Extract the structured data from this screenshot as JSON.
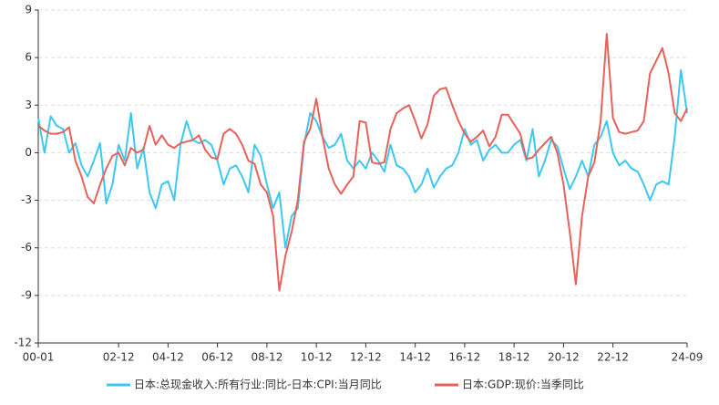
{
  "chart_data": {
    "type": "line",
    "categories": [
      "00-01",
      null,
      null,
      null,
      null,
      null,
      null,
      null,
      null,
      null,
      null,
      null,
      null,
      "02-12",
      null,
      null,
      null,
      null,
      null,
      null,
      null,
      "04-12",
      null,
      null,
      null,
      null,
      null,
      null,
      null,
      "06-12",
      null,
      null,
      null,
      null,
      null,
      null,
      null,
      "08-12",
      null,
      null,
      null,
      null,
      null,
      null,
      null,
      "10-12",
      null,
      null,
      null,
      null,
      null,
      null,
      null,
      "12-12",
      null,
      null,
      null,
      null,
      null,
      null,
      null,
      "14-12",
      null,
      null,
      null,
      null,
      null,
      null,
      null,
      "16-12",
      null,
      null,
      null,
      null,
      null,
      null,
      null,
      "18-12",
      null,
      null,
      null,
      null,
      null,
      null,
      null,
      "20-12",
      null,
      null,
      null,
      null,
      null,
      null,
      null,
      "22-12",
      null,
      null,
      null,
      null,
      null,
      null,
      null,
      null,
      null,
      null,
      null,
      "24-09"
    ],
    "series": [
      {
        "name": "日本:总现金收入:所有行业:同比-日本:CPI:当月同比",
        "color": "#3cc8f0",
        "values": [
          2.2,
          0.0,
          2.3,
          1.7,
          1.5,
          0.0,
          0.6,
          -0.8,
          -1.5,
          -0.5,
          0.6,
          -3.2,
          -2.0,
          0.5,
          -0.5,
          2.5,
          -1.0,
          0.3,
          -2.5,
          -3.5,
          -2.0,
          -1.8,
          -3.0,
          0.5,
          2.0,
          0.8,
          0.6,
          0.8,
          0.5,
          -0.5,
          -2.0,
          -1.0,
          -0.8,
          -1.5,
          -2.5,
          0.5,
          -0.2,
          -2.0,
          -3.5,
          -2.5,
          -6.0,
          -4.0,
          -3.5,
          0.5,
          2.5,
          2.0,
          1.0,
          0.3,
          0.5,
          1.2,
          -0.5,
          -1.0,
          -0.5,
          -1.0,
          0.0,
          -0.5,
          -1.2,
          0.5,
          -0.8,
          -1.0,
          -1.5,
          -2.5,
          -2.0,
          -1.0,
          -2.2,
          -1.5,
          -1.0,
          -0.8,
          0.0,
          1.5,
          0.5,
          0.8,
          -0.5,
          0.2,
          0.5,
          0.0,
          0.0,
          0.5,
          0.8,
          -0.5,
          1.5,
          -1.5,
          -0.5,
          0.8,
          0.4,
          -1.0,
          -2.3,
          -1.5,
          -0.5,
          -1.5,
          0.5,
          1.0,
          2.0,
          0.0,
          -0.8,
          -0.5,
          -1.0,
          -1.2,
          -2.0,
          -3.0,
          -2.0,
          -1.8,
          -2.0,
          1.0,
          5.2,
          2.5
        ]
      },
      {
        "name": "日本:GDP:现价:当季同比",
        "color": "#e8615a",
        "values": [
          1.7,
          1.4,
          1.2,
          1.2,
          1.3,
          1.6,
          -0.5,
          -1.5,
          -2.8,
          -3.2,
          -2.0,
          -1.0,
          -0.2,
          0,
          -0.8,
          0.3,
          0.0,
          0.2,
          1.7,
          0.5,
          1.1,
          0.5,
          0.3,
          0.6,
          0.7,
          0.8,
          1.1,
          0.2,
          -0.3,
          -0.4,
          1.2,
          1.5,
          1.2,
          0.5,
          -0.5,
          -0.7,
          -2.0,
          -2.5,
          -4.0,
          -8.7,
          -6.5,
          -5.0,
          -3.0,
          0.7,
          1.5,
          3.4,
          1.0,
          -1.0,
          -2.0,
          -2.6,
          -2.0,
          -1.5,
          2.0,
          1.9,
          -0.6,
          -0.7,
          -0.6,
          1.5,
          2.5,
          2.8,
          3.0,
          2.0,
          0.9,
          1.8,
          3.6,
          4.0,
          4.1,
          3.0,
          2.0,
          1.2,
          0.7,
          1.0,
          1.4,
          0.4,
          1.0,
          2.4,
          2.4,
          1.8,
          1.2,
          -0.4,
          -0.3,
          0.2,
          0.6,
          1.0,
          0.0,
          -2.0,
          -5.0,
          -8.3,
          -4.0,
          -1.5,
          -0.6,
          2.0,
          7.5,
          2.2,
          1.3,
          1.2,
          1.3,
          1.4,
          2.0,
          5.0,
          5.8,
          6.6,
          5.0,
          2.5,
          2.0,
          2.8
        ]
      }
    ],
    "ylim": [
      -12,
      9
    ],
    "yticks": [
      -12,
      -9,
      -6,
      -3,
      0,
      3,
      6,
      9
    ],
    "grid": true,
    "legend": "bottom"
  }
}
